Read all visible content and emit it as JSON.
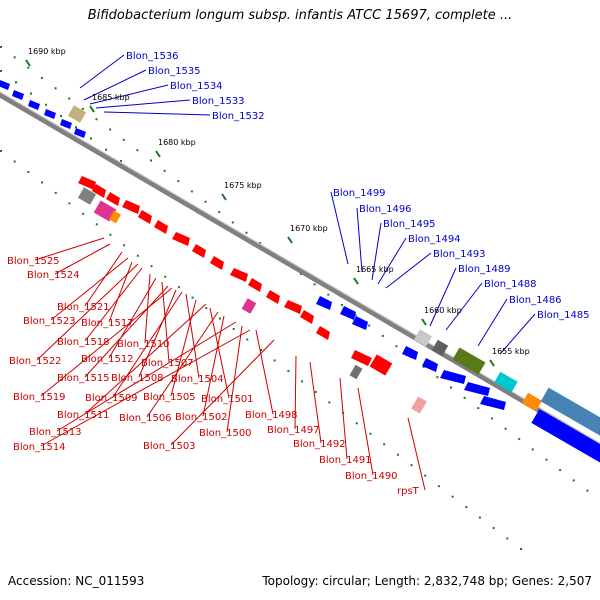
{
  "title": "Bifidobacterium longum subsp. infantis ATCC 15697, complete ...",
  "footer": {
    "accession": "Accession: NC_011593",
    "summary": "Topology: circular; Length: 2,832,748 bp; Genes: 2,507"
  },
  "colors": {
    "backbone": "#808080",
    "forward": "#0000ff",
    "reverse": "#ff0000",
    "tick": "#1a7a1a",
    "label_forward": "#0000cc",
    "label_reverse": "#cc0000"
  },
  "scale_ticks": [
    "1690 kbp",
    "1685 kbp",
    "1680 kbp",
    "1675 kbp",
    "1670 kbp",
    "1665 kbp",
    "1660 kbp",
    "1655 kbp"
  ],
  "forward_labels": [
    "Blon_1536",
    "Blon_1535",
    "Blon_1534",
    "Blon_1533",
    "Blon_1532",
    "Blon_1499",
    "Blon_1496",
    "Blon_1495",
    "Blon_1494",
    "Blon_1493",
    "Blon_1489",
    "Blon_1488",
    "Blon_1486",
    "Blon_1485"
  ],
  "reverse_labels": [
    "Blon_1525",
    "Blon_1524",
    "Blon_1521",
    "Blon_1523",
    "Blon_1517",
    "Blon_1518",
    "Blon_1522",
    "Blon_1510",
    "Blon_1512",
    "Blon_1507",
    "Blon_1515",
    "Blon_1508",
    "Blon_1504",
    "Blon_1519",
    "Blon_1509",
    "Blon_1505",
    "Blon_1501",
    "Blon_1511",
    "Blon_1506",
    "Blon_1502",
    "Blon_1498",
    "Blon_1513",
    "Blon_1500",
    "Blon_1497",
    "Blon_1514",
    "Blon_1503",
    "Blon_1492",
    "Blon_1491",
    "Blon_1490",
    "rpsT"
  ]
}
